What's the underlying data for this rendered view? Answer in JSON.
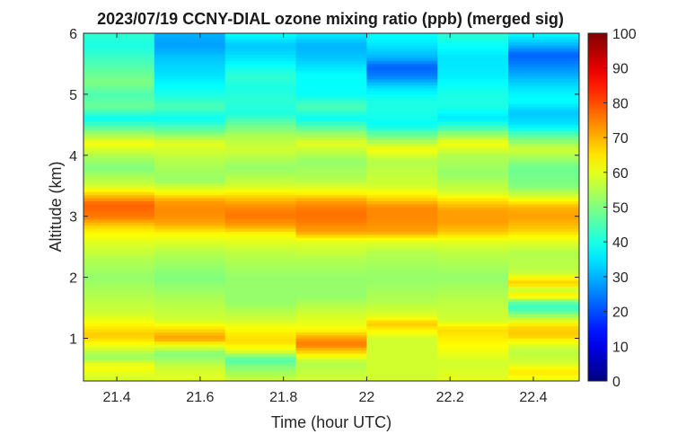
{
  "chart_data": {
    "type": "heatmap",
    "title": "2023/07/19 CCNY-DIAL ozone mixing ratio (ppb) (merged sig)",
    "xlabel": "Time (hour UTC)",
    "ylabel": "Altitude (km)",
    "xlim": [
      21.32,
      22.51
    ],
    "ylim": [
      0.3,
      6
    ],
    "x_ticks": [
      "21.4",
      "21.6",
      "21.8",
      "22",
      "22.2",
      "22.4"
    ],
    "x_tick_values": [
      21.4,
      21.6,
      21.8,
      22.0,
      22.2,
      22.4
    ],
    "y_ticks": [
      "1",
      "2",
      "3",
      "4",
      "5",
      "6"
    ],
    "y_tick_values": [
      1,
      2,
      3,
      4,
      5,
      6
    ],
    "colorbar": {
      "colormap": "jet",
      "range": [
        0,
        100
      ],
      "ticks": [
        "0",
        "10",
        "20",
        "30",
        "40",
        "50",
        "60",
        "70",
        "80",
        "90",
        "100"
      ],
      "tick_values": [
        0,
        10,
        20,
        30,
        40,
        50,
        60,
        70,
        80,
        90,
        100
      ]
    },
    "x_bins": [
      21.32,
      21.49,
      21.66,
      21.83,
      22.0,
      22.17,
      22.34,
      22.51
    ],
    "profiles": [
      [
        [
          0.3,
          58
        ],
        [
          0.55,
          62
        ],
        [
          0.7,
          52
        ],
        [
          0.9,
          62
        ],
        [
          1.05,
          68
        ],
        [
          1.2,
          64
        ],
        [
          1.4,
          58
        ],
        [
          1.7,
          55
        ],
        [
          2.0,
          52
        ],
        [
          2.3,
          55
        ],
        [
          2.6,
          60
        ],
        [
          2.8,
          65
        ],
        [
          3.0,
          76
        ],
        [
          3.2,
          78
        ],
        [
          3.35,
          68
        ],
        [
          3.5,
          58
        ],
        [
          3.8,
          50
        ],
        [
          4.0,
          55
        ],
        [
          4.2,
          62
        ],
        [
          4.4,
          50
        ],
        [
          4.6,
          38
        ],
        [
          4.8,
          48
        ],
        [
          5.0,
          45
        ],
        [
          5.2,
          50
        ],
        [
          5.5,
          45
        ],
        [
          5.8,
          40
        ],
        [
          6.0,
          42
        ]
      ],
      [
        [
          0.3,
          60
        ],
        [
          0.5,
          58
        ],
        [
          0.75,
          50
        ],
        [
          0.9,
          62
        ],
        [
          1.0,
          72
        ],
        [
          1.1,
          68
        ],
        [
          1.3,
          58
        ],
        [
          1.6,
          55
        ],
        [
          2.0,
          50
        ],
        [
          2.4,
          55
        ],
        [
          2.7,
          62
        ],
        [
          2.9,
          72
        ],
        [
          3.1,
          74
        ],
        [
          3.25,
          72
        ],
        [
          3.4,
          62
        ],
        [
          3.6,
          52
        ],
        [
          3.9,
          55
        ],
        [
          4.2,
          60
        ],
        [
          4.4,
          48
        ],
        [
          4.6,
          38
        ],
        [
          4.8,
          45
        ],
        [
          5.0,
          40
        ],
        [
          5.3,
          35
        ],
        [
          5.6,
          32
        ],
        [
          5.8,
          28
        ],
        [
          6.0,
          30
        ]
      ],
      [
        [
          0.3,
          58
        ],
        [
          0.55,
          50
        ],
        [
          0.65,
          45
        ],
        [
          0.8,
          60
        ],
        [
          0.95,
          66
        ],
        [
          1.1,
          64
        ],
        [
          1.3,
          58
        ],
        [
          1.6,
          52
        ],
        [
          2.0,
          52
        ],
        [
          2.4,
          56
        ],
        [
          2.7,
          62
        ],
        [
          2.85,
          72
        ],
        [
          3.0,
          76
        ],
        [
          3.15,
          74
        ],
        [
          3.3,
          68
        ],
        [
          3.5,
          58
        ],
        [
          3.8,
          52
        ],
        [
          4.1,
          58
        ],
        [
          4.3,
          55
        ],
        [
          4.5,
          48
        ],
        [
          4.7,
          40
        ],
        [
          4.9,
          42
        ],
        [
          5.1,
          40
        ],
        [
          5.3,
          42
        ],
        [
          5.6,
          35
        ],
        [
          5.8,
          32
        ],
        [
          6.0,
          38
        ]
      ],
      [
        [
          0.3,
          58
        ],
        [
          0.6,
          55
        ],
        [
          0.8,
          68
        ],
        [
          0.9,
          76
        ],
        [
          1.0,
          72
        ],
        [
          1.15,
          62
        ],
        [
          1.4,
          58
        ],
        [
          1.7,
          52
        ],
        [
          2.0,
          52
        ],
        [
          2.3,
          55
        ],
        [
          2.6,
          60
        ],
        [
          2.75,
          72
        ],
        [
          2.95,
          76
        ],
        [
          3.1,
          76
        ],
        [
          3.25,
          72
        ],
        [
          3.4,
          62
        ],
        [
          3.6,
          55
        ],
        [
          3.9,
          52
        ],
        [
          4.2,
          60
        ],
        [
          4.4,
          50
        ],
        [
          4.6,
          38
        ],
        [
          4.8,
          45
        ],
        [
          5.0,
          38
        ],
        [
          5.3,
          38
        ],
        [
          5.6,
          32
        ],
        [
          5.8,
          30
        ],
        [
          6.0,
          36
        ]
      ],
      [
        [
          0.3,
          58
        ],
        [
          0.8,
          58
        ],
        [
          1.0,
          58
        ],
        [
          1.15,
          64
        ],
        [
          1.25,
          68
        ],
        [
          1.35,
          60
        ],
        [
          1.6,
          55
        ],
        [
          2.0,
          52
        ],
        [
          2.4,
          55
        ],
        [
          2.6,
          60
        ],
        [
          2.75,
          72
        ],
        [
          2.95,
          74
        ],
        [
          3.15,
          74
        ],
        [
          3.3,
          66
        ],
        [
          3.5,
          58
        ],
        [
          3.9,
          55
        ],
        [
          4.1,
          62
        ],
        [
          4.3,
          50
        ],
        [
          4.5,
          38
        ],
        [
          4.7,
          40
        ],
        [
          4.9,
          40
        ],
        [
          5.1,
          35
        ],
        [
          5.3,
          25
        ],
        [
          5.45,
          22
        ],
        [
          5.6,
          30
        ],
        [
          5.8,
          35
        ],
        [
          6.0,
          38
        ]
      ],
      [
        [
          0.3,
          60
        ],
        [
          0.6,
          58
        ],
        [
          0.85,
          62
        ],
        [
          1.0,
          64
        ],
        [
          1.15,
          66
        ],
        [
          1.3,
          58
        ],
        [
          1.6,
          56
        ],
        [
          2.0,
          52
        ],
        [
          2.4,
          56
        ],
        [
          2.6,
          60
        ],
        [
          2.75,
          68
        ],
        [
          2.9,
          72
        ],
        [
          3.1,
          72
        ],
        [
          3.25,
          66
        ],
        [
          3.4,
          58
        ],
        [
          3.7,
          52
        ],
        [
          4.0,
          55
        ],
        [
          4.2,
          62
        ],
        [
          4.4,
          48
        ],
        [
          4.6,
          35
        ],
        [
          4.8,
          40
        ],
        [
          5.0,
          40
        ],
        [
          5.3,
          36
        ],
        [
          5.6,
          35
        ],
        [
          5.8,
          38
        ],
        [
          6.0,
          42
        ]
      ],
      [
        [
          0.3,
          60
        ],
        [
          0.45,
          65
        ],
        [
          0.6,
          58
        ],
        [
          0.8,
          56
        ],
        [
          0.95,
          62
        ],
        [
          1.05,
          68
        ],
        [
          1.2,
          66
        ],
        [
          1.35,
          55
        ],
        [
          1.5,
          42
        ],
        [
          1.6,
          48
        ],
        [
          1.7,
          66
        ],
        [
          1.8,
          56
        ],
        [
          1.9,
          68
        ],
        [
          2.1,
          56
        ],
        [
          2.4,
          55
        ],
        [
          2.6,
          60
        ],
        [
          2.8,
          68
        ],
        [
          3.0,
          72
        ],
        [
          3.15,
          70
        ],
        [
          3.3,
          60
        ],
        [
          3.5,
          50
        ],
        [
          3.8,
          48
        ],
        [
          4.1,
          58
        ],
        [
          4.3,
          48
        ],
        [
          4.5,
          35
        ],
        [
          4.7,
          32
        ],
        [
          4.9,
          38
        ],
        [
          5.1,
          35
        ],
        [
          5.3,
          30
        ],
        [
          5.5,
          25
        ],
        [
          5.65,
          22
        ],
        [
          5.8,
          30
        ],
        [
          6.0,
          38
        ]
      ]
    ]
  }
}
